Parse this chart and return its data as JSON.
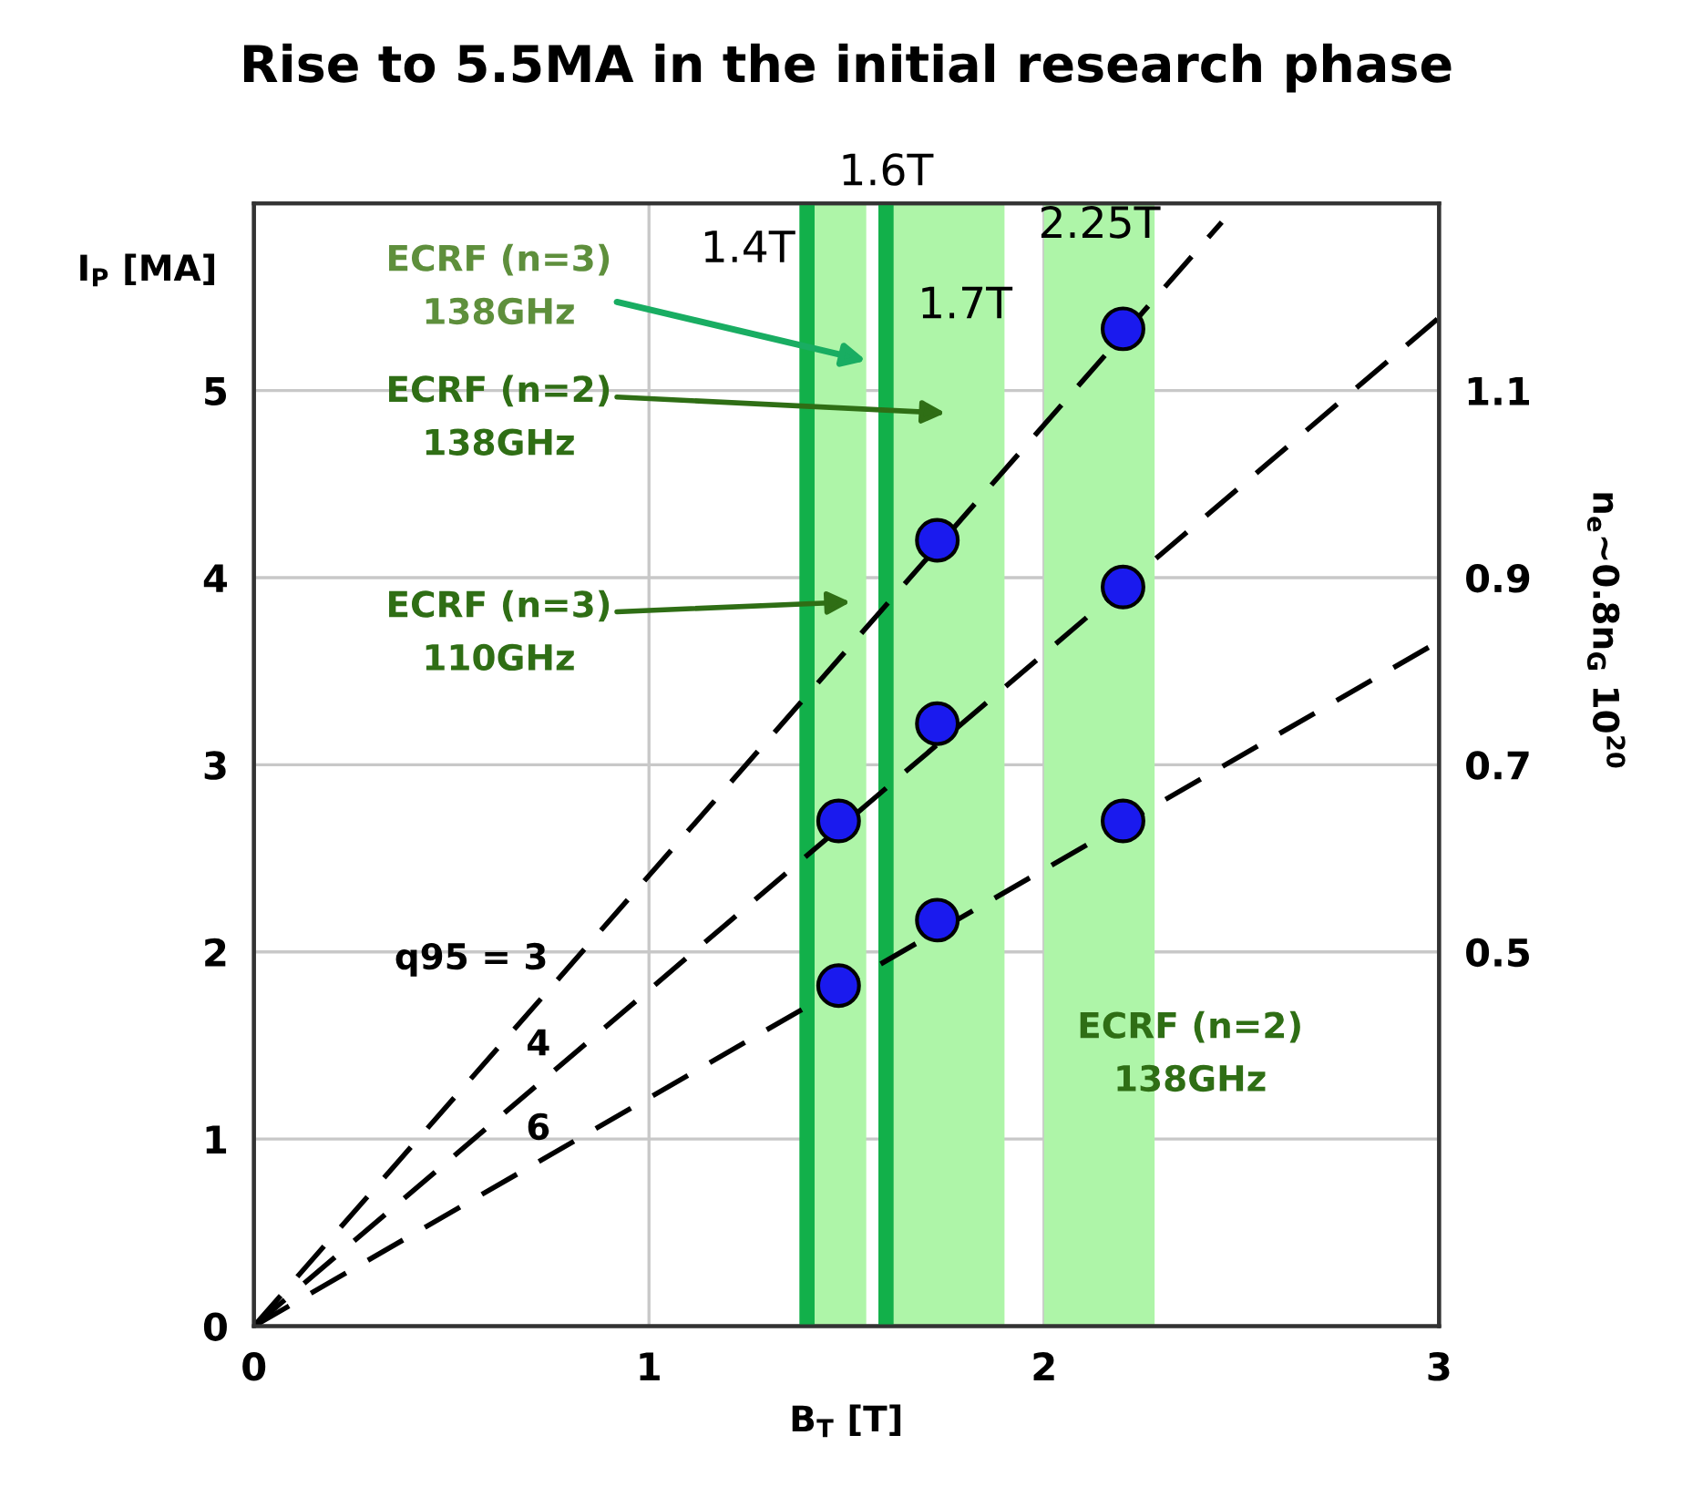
{
  "chart_data": {
    "type": "scatter",
    "title": "Rise to 5.5MA in the initial research phase",
    "xlabel": "B$_{T}$ [T]",
    "ylabel": "I$_{P}$ [MA]",
    "y2label": "n$_{e}$~0.8n$_{G}$ 10$^{20}$",
    "xlim": [
      0,
      3
    ],
    "xticks": [
      0,
      1,
      2,
      3
    ],
    "ylim": [
      0,
      6
    ],
    "yticks": [
      0,
      1,
      2,
      3,
      4,
      5
    ],
    "y2lim": [
      0.1,
      1.3
    ],
    "y2ticks": [
      0.5,
      0.7,
      0.9,
      1.1
    ],
    "grid": true,
    "series": [
      {
        "type": "line",
        "color": "#000000",
        "line_style": "dashed",
        "marker": "none",
        "x": [
          0,
          2.45
        ],
        "values": [
          0,
          5.9
        ]
      },
      {
        "type": "line",
        "color": "#000000",
        "line_style": "dashed",
        "marker": "none",
        "x": [
          0,
          3
        ],
        "values": [
          0,
          5.39
        ]
      },
      {
        "type": "line",
        "color": "#000000",
        "line_style": "dashed",
        "marker": "none",
        "x": [
          0,
          3
        ],
        "values": [
          0,
          3.66
        ]
      },
      {
        "color": "#1a1aee",
        "marker": "circle",
        "x": [
          1.48,
          1.48,
          1.73,
          1.73,
          1.73,
          2.2,
          2.2,
          2.2
        ],
        "values": [
          2.7,
          1.82,
          4.2,
          3.22,
          2.17,
          5.33,
          3.95,
          2.7
        ]
      }
    ],
    "ref_lines": [
      {
        "axis": "x",
        "value": 1.4,
        "label": "1.4T",
        "color": "#12b04a"
      },
      {
        "axis": "x",
        "value": 1.6,
        "label": "1.6T",
        "color": "#12b04a"
      }
    ],
    "bands": [
      {
        "axis": "x",
        "from": 1.4,
        "to": 1.55,
        "color": "#aef5a8"
      },
      {
        "axis": "x",
        "from": 1.6,
        "to": 1.9,
        "label": "1.7T",
        "color": "#aef5a8"
      },
      {
        "axis": "x",
        "from": 2.0,
        "to": 2.28,
        "label": "2.25T",
        "color": "#aef5a8"
      }
    ],
    "annotations": [
      {
        "text": "ECRF (n=3)\n138GHz",
        "x": 1.55,
        "y": 5.16
      },
      "ECRF (n=2)\n138GHz",
      "ECRF (n=3)\n110GHz",
      "ECRF (n=2)\n138GHz",
      "q95 = 3",
      "4",
      "6"
    ]
  }
}
